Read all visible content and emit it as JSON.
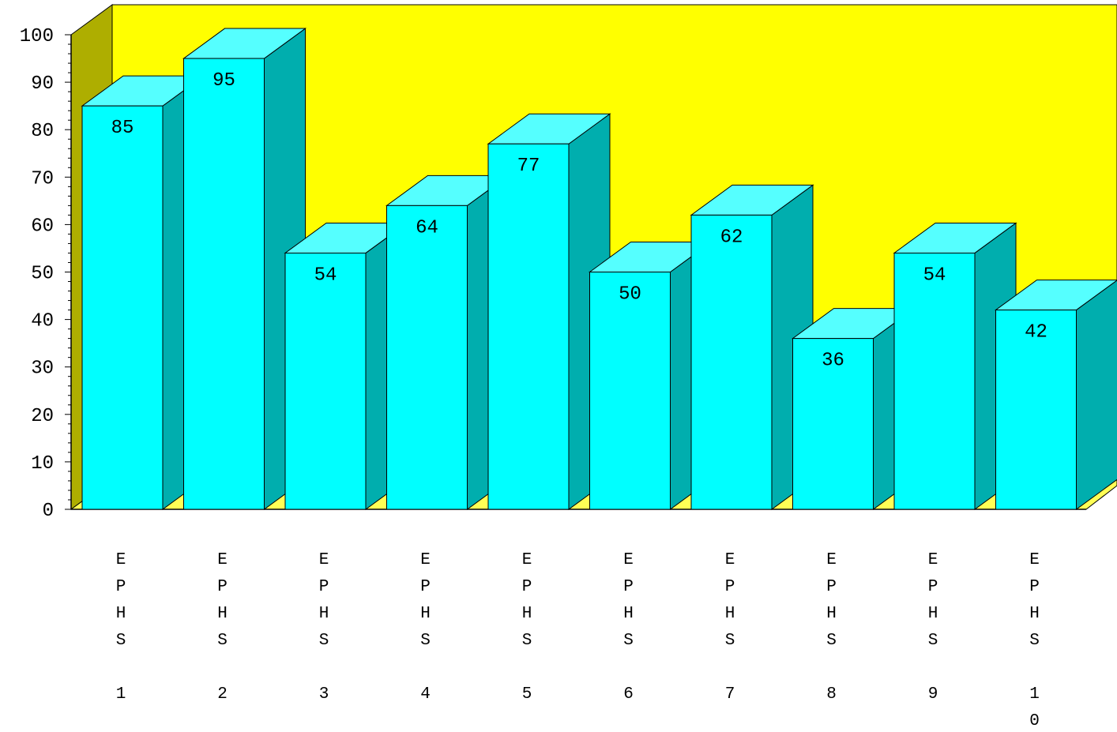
{
  "chart_data": {
    "type": "bar",
    "title": "",
    "xlabel": "",
    "ylabel": "",
    "ylim": [
      0,
      100
    ],
    "yticks": [
      0,
      10,
      20,
      30,
      40,
      50,
      60,
      70,
      80,
      90,
      100
    ],
    "categories": [
      "EPHS 1",
      "EPHS 2",
      "EPHS 3",
      "EPHS 4",
      "EPHS 5",
      "EPHS 6",
      "EPHS 7",
      "EPHS 8",
      "EPHS 9",
      "EPHS 10"
    ],
    "values": [
      85,
      95,
      54,
      64,
      77,
      50,
      62,
      36,
      54,
      42
    ],
    "data_labels": [
      "85",
      "95",
      "54",
      "64",
      "77",
      "50",
      "62",
      "36",
      "54",
      "42"
    ],
    "grid": false,
    "legend": "none",
    "three_d": true,
    "colors": {
      "bar_front": "#00ffff",
      "bar_top": "#55ffff",
      "bar_side": "#00aeae",
      "back_wall": "#ffff00",
      "side_wall": "#aeae00",
      "floor": "#ffff55",
      "edge": "#000000"
    }
  }
}
